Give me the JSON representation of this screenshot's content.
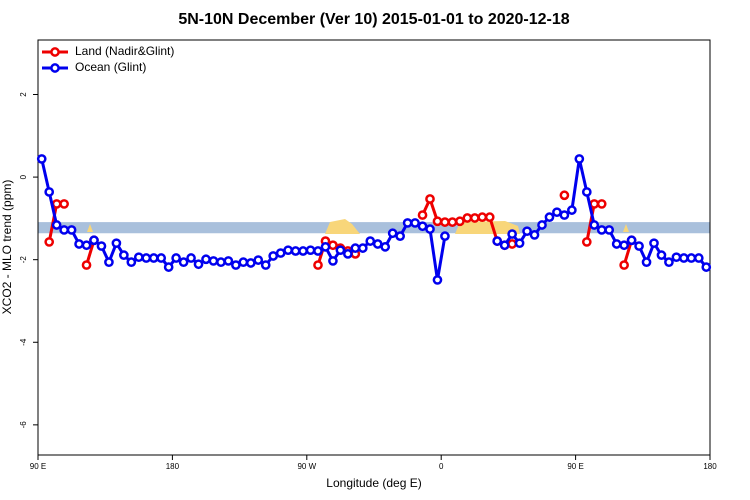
{
  "chart_data": {
    "type": "line",
    "title": "5N-10N December (Ver 10)   2015-01-01 to 2020-12-18",
    "x_label": "Longitude (deg E)",
    "y_label": "XCO2 - MLO trend (ppm)",
    "xlim": [
      90,
      540
    ],
    "ylim": [
      -6.73,
      3.32
    ],
    "xticks": [
      {
        "value": 90,
        "label": "90 E"
      },
      180,
      {
        "value": 270,
        "label": "90 W"
      },
      {
        "value": 360,
        "label": "0"
      },
      {
        "value": 450,
        "label": "90 E"
      },
      {
        "value": 540,
        "label": "180"
      }
    ],
    "yticks": [
      -6,
      -4,
      -2,
      0,
      2
    ],
    "band": [
      -1.36,
      -1.09
    ],
    "band_color": "#a9c0dc",
    "legend": "top-left",
    "x": [
      92.5,
      97.5,
      102.5,
      107.5,
      112.5,
      117.5,
      122.5,
      127.5,
      132.5,
      137.5,
      142.5,
      147.5,
      152.5,
      157.5,
      162.5,
      167.5,
      172.5,
      177.5,
      182.5,
      187.5,
      192.5,
      197.5,
      202.5,
      207.5,
      212.5,
      217.5,
      222.5,
      227.5,
      232.5,
      237.5,
      242.5,
      247.5,
      252.5,
      257.5,
      262.5,
      267.5,
      272.5,
      277.5,
      282.5,
      287.5,
      292.5,
      297.5,
      302.5,
      307.5,
      312.5,
      317.5,
      322.5,
      327.5,
      332.5,
      337.5,
      342.5,
      347.5,
      352.5,
      357.5,
      362.5,
      367.5,
      372.5,
      377.5,
      382.5,
      387.5,
      392.5,
      397.5,
      402.5,
      407.5,
      412.5,
      417.5,
      422.5,
      427.5,
      432.5,
      437.5,
      442.5,
      447.5,
      452.5,
      457.5,
      462.5,
      467.5,
      472.5,
      477.5,
      482.5,
      487.5,
      492.5,
      497.5,
      502.5,
      507.5,
      512.5,
      517.5,
      522.5,
      527.5,
      532.5,
      537.5
    ],
    "series": [
      {
        "name": "Land (Nadir&Glint)",
        "color": "#ee0000",
        "values": [
          null,
          -1.57,
          -0.65,
          -0.65,
          null,
          null,
          -2.13,
          -1.53,
          null,
          null,
          null,
          null,
          null,
          null,
          null,
          null,
          null,
          null,
          null,
          null,
          null,
          null,
          null,
          null,
          null,
          null,
          null,
          null,
          null,
          null,
          null,
          null,
          null,
          null,
          null,
          null,
          null,
          -2.13,
          -1.55,
          -1.65,
          -1.72,
          -1.79,
          -1.86,
          null,
          null,
          null,
          null,
          null,
          null,
          null,
          null,
          -0.92,
          -0.53,
          -1.07,
          -1.09,
          -1.09,
          -1.07,
          -0.99,
          -0.99,
          -0.97,
          -0.97,
          -1.55,
          -1.65,
          -1.62,
          null,
          null,
          null,
          null,
          null,
          null,
          -0.44,
          null,
          null,
          -1.57,
          -0.65,
          -0.65,
          null,
          null,
          -2.13,
          -1.53,
          null,
          null,
          null,
          null,
          null,
          null,
          null,
          null,
          null,
          null
        ]
      },
      {
        "name": "Ocean (Glint)",
        "color": "#0000ee",
        "values": [
          0.44,
          -0.36,
          -1.16,
          -1.28,
          -1.28,
          -1.62,
          -1.65,
          -1.53,
          -1.67,
          -2.06,
          -1.6,
          -1.89,
          -2.06,
          -1.94,
          -1.96,
          -1.96,
          -1.96,
          -2.18,
          -1.96,
          -2.06,
          -1.96,
          -2.11,
          -1.99,
          -2.03,
          -2.06,
          -2.03,
          -2.13,
          -2.06,
          -2.08,
          -2.01,
          -2.13,
          -1.91,
          -1.84,
          -1.77,
          -1.79,
          -1.79,
          -1.77,
          -1.79,
          -1.69,
          -2.03,
          -1.77,
          -1.86,
          -1.72,
          -1.72,
          -1.55,
          -1.62,
          -1.69,
          -1.36,
          -1.43,
          -1.11,
          -1.11,
          -1.19,
          -1.26,
          -2.49,
          -1.43,
          null,
          null,
          null,
          null,
          null,
          null,
          -1.55,
          -1.65,
          -1.38,
          -1.6,
          -1.31,
          -1.4,
          -1.16,
          -0.97,
          -0.85,
          -0.92,
          -0.8,
          0.44,
          -0.36,
          -1.16,
          -1.28,
          -1.28,
          -1.62,
          -1.65,
          -1.53,
          -1.67,
          -2.06,
          -1.6,
          -1.89,
          -2.06,
          -1.94,
          -1.96,
          -1.96,
          -1.96,
          -2.18
        ]
      }
    ]
  }
}
